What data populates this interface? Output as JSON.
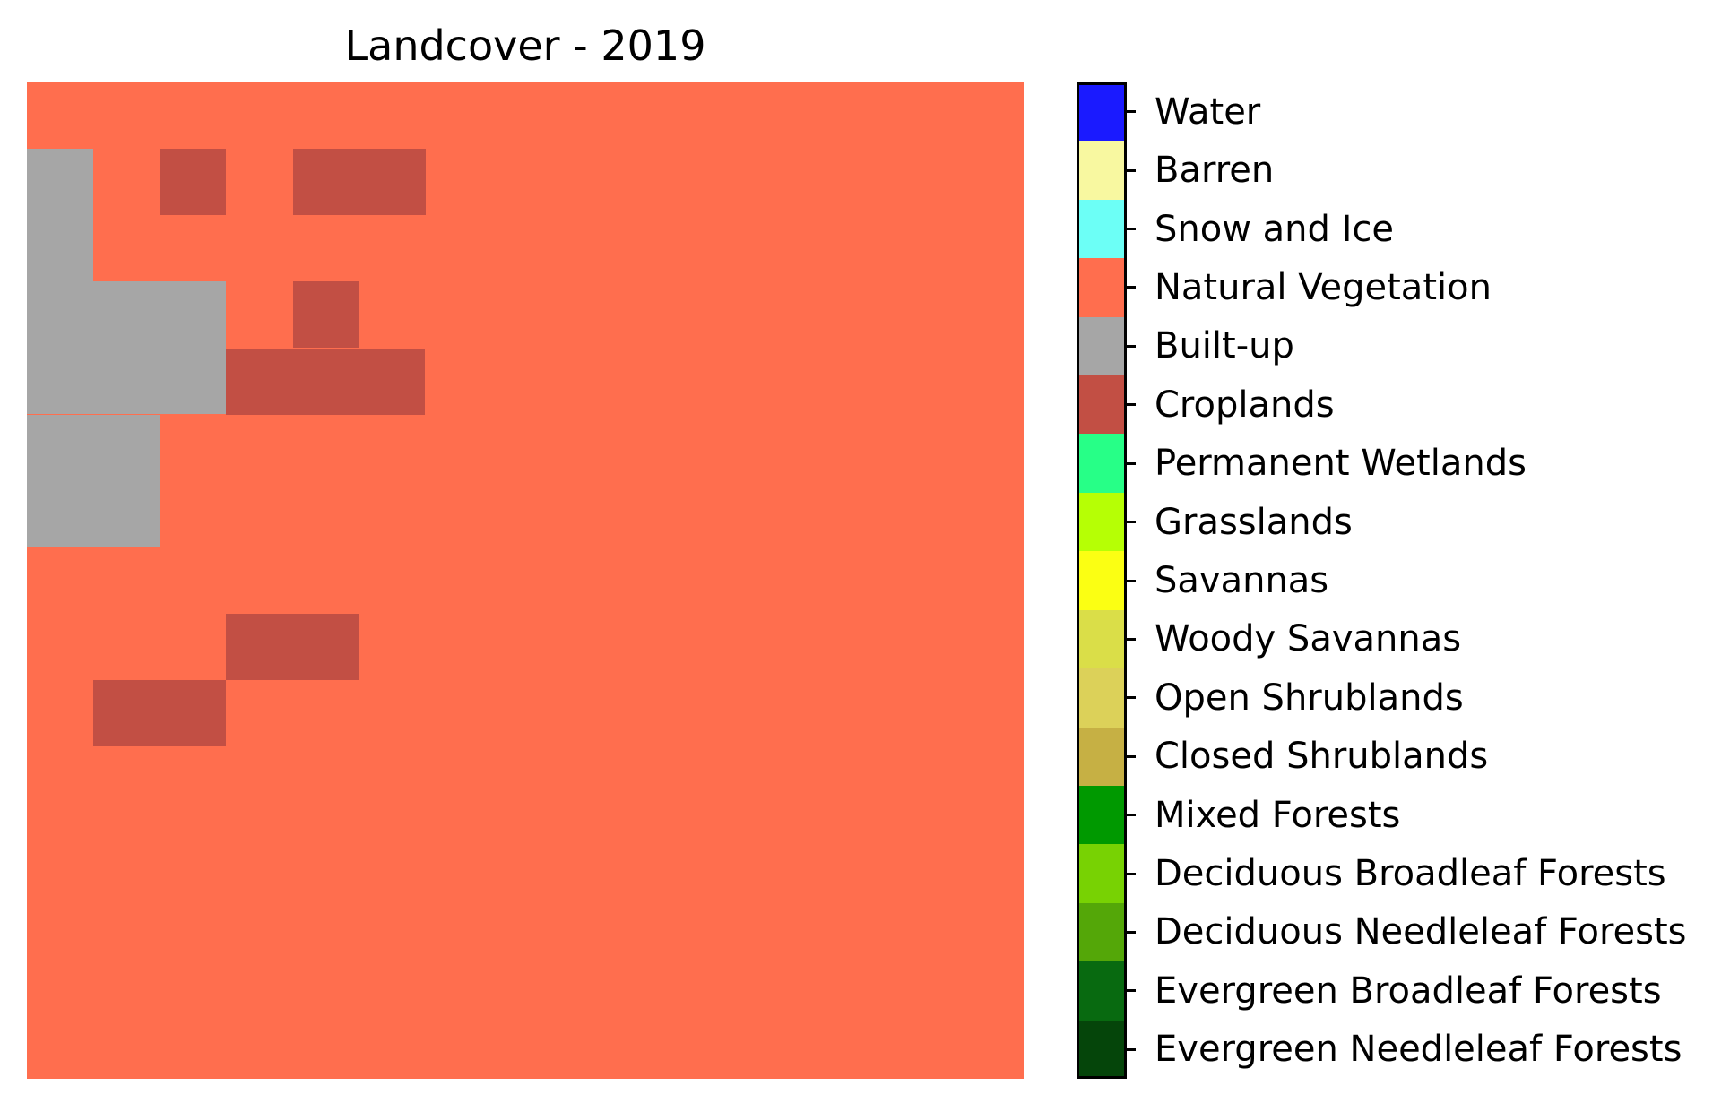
{
  "title": "Landcover - 2019",
  "map": {
    "background_class": "Natural Vegetation",
    "grid_size": 15,
    "patches": [
      {
        "class": "Built-up",
        "x": 0,
        "y": 1,
        "w": 1,
        "h": 2
      },
      {
        "class": "Built-up",
        "x": 0,
        "y": 3,
        "w": 3,
        "h": 2
      },
      {
        "class": "Built-up",
        "x": 0,
        "y": 5,
        "w": 2,
        "h": 2
      },
      {
        "class": "Croplands",
        "x": 2,
        "y": 1,
        "w": 1,
        "h": 1
      },
      {
        "class": "Croplands",
        "x": 4,
        "y": 1,
        "w": 2,
        "h": 1
      },
      {
        "class": "Croplands",
        "x": 4,
        "y": 3,
        "w": 1,
        "h": 1
      },
      {
        "class": "Croplands",
        "x": 3,
        "y": 4,
        "w": 3,
        "h": 1
      },
      {
        "class": "Croplands",
        "x": 3,
        "y": 8,
        "w": 2,
        "h": 1
      },
      {
        "class": "Croplands",
        "x": 1,
        "y": 9,
        "w": 2,
        "h": 1
      }
    ]
  },
  "legend": [
    {
      "label": "Water",
      "color": "#1a1aff"
    },
    {
      "label": "Barren",
      "color": "#f8f8a0"
    },
    {
      "label": "Snow and Ice",
      "color": "#6cfff6"
    },
    {
      "label": "Natural Vegetation",
      "color": "#ff6e4e"
    },
    {
      "label": "Built-up",
      "color": "#a6a6a6"
    },
    {
      "label": "Croplands",
      "color": "#c24f44"
    },
    {
      "label": "Permanent Wetlands",
      "color": "#27ff87"
    },
    {
      "label": "Grasslands",
      "color": "#b6ff05"
    },
    {
      "label": "Savannas",
      "color": "#fbff13"
    },
    {
      "label": "Woody Savannas",
      "color": "#dade48"
    },
    {
      "label": "Open Shrublands",
      "color": "#dcd159"
    },
    {
      "label": "Closed Shrublands",
      "color": "#c6b044"
    },
    {
      "label": "Mixed Forests",
      "color": "#009900"
    },
    {
      "label": "Deciduous Broadleaf Forests",
      "color": "#78d203"
    },
    {
      "label": "Deciduous Needleleaf Forests",
      "color": "#54a708"
    },
    {
      "label": "Evergreen Broadleaf Forests",
      "color": "#086a10"
    },
    {
      "label": "Evergreen Needleleaf Forests",
      "color": "#05450a"
    }
  ]
}
